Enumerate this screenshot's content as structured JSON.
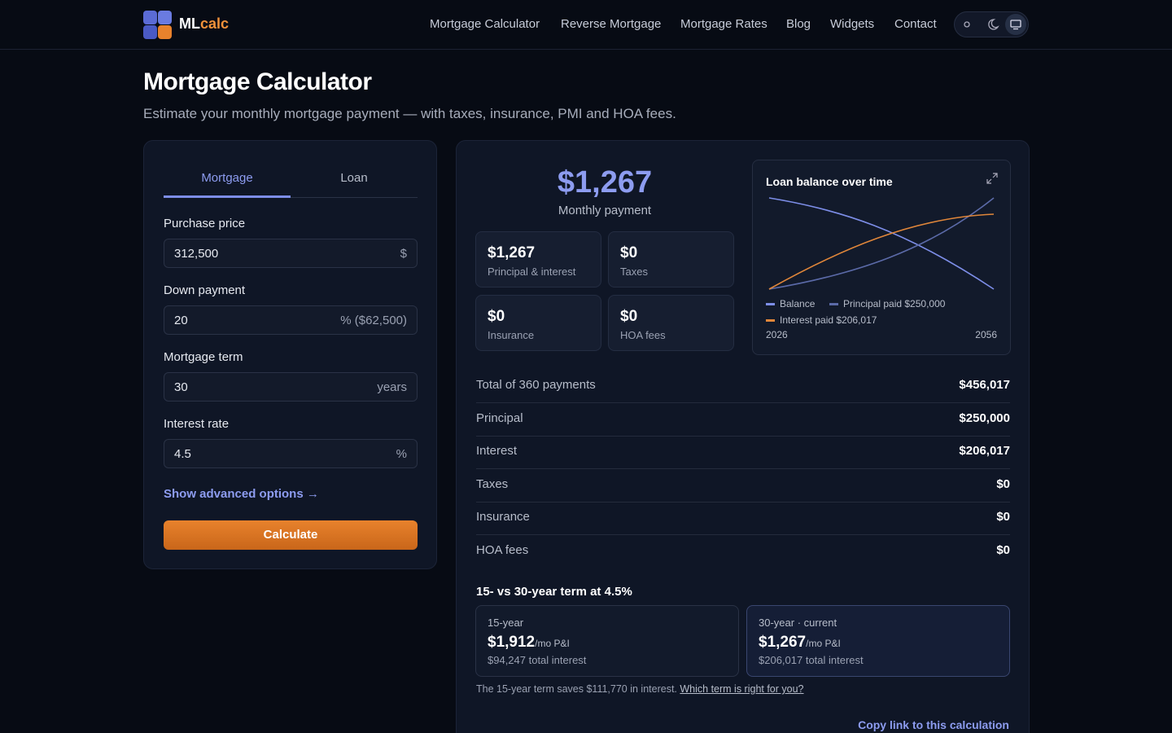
{
  "nav": {
    "brand_a": "ML",
    "brand_b": "calc",
    "links": [
      "Mortgage Calculator",
      "Reverse Mortgage",
      "Mortgage Rates",
      "Blog",
      "Widgets",
      "Contact"
    ]
  },
  "header": {
    "title": "Mortgage Calculator",
    "subtitle": "Estimate your monthly mortgage payment — with taxes, insurance, PMI and HOA fees."
  },
  "form": {
    "tabs": [
      "Mortgage",
      "Loan"
    ],
    "fields": [
      {
        "label": "Purchase price",
        "value": "312,500",
        "unit": "$"
      },
      {
        "label": "Down payment",
        "value": "20",
        "unit": "% ($62,500)"
      },
      {
        "label": "Mortgage term",
        "value": "30",
        "unit": "years"
      },
      {
        "label": "Interest rate",
        "value": "4.5",
        "unit": "%"
      }
    ],
    "advanced": "Show advanced options →",
    "button": "Calculate"
  },
  "summary": {
    "amount": "$1,267",
    "label": "Monthly payment",
    "tiles": [
      {
        "value": "$1,267",
        "label": "Principal & interest"
      },
      {
        "value": "$0",
        "label": "Taxes"
      },
      {
        "value": "$0",
        "label": "Insurance"
      },
      {
        "value": "$0",
        "label": "HOA fees"
      }
    ]
  },
  "chart_card": {
    "title": "Loan balance over time",
    "legend": [
      "Balance",
      "Principal paid $250,000",
      "Interest paid $206,017"
    ],
    "x_start": "2026",
    "x_end": "2056"
  },
  "breakdown": {
    "rows": [
      [
        "Total of 360 payments",
        "$456,017"
      ],
      [
        "Principal",
        "$250,000"
      ],
      [
        "Interest",
        "$206,017"
      ],
      [
        "Taxes",
        "$0"
      ],
      [
        "Insurance",
        "$0"
      ],
      [
        "HOA fees",
        "$0"
      ]
    ]
  },
  "comparison": {
    "title": "15- vs 30-year term at 4.5%",
    "cards": [
      {
        "term": "15-year",
        "amount": "$1,912",
        "unit": "/mo P&I",
        "interest": "$94,247 total interest"
      },
      {
        "term": "30-year · current",
        "amount": "$1,267",
        "unit": "/mo P&I",
        "interest": "$206,017 total interest"
      }
    ],
    "note": "The 15-year term saves $111,770 in interest.",
    "link": "Which term is right for you?"
  },
  "copy_link": "Copy link to this calculation"
}
